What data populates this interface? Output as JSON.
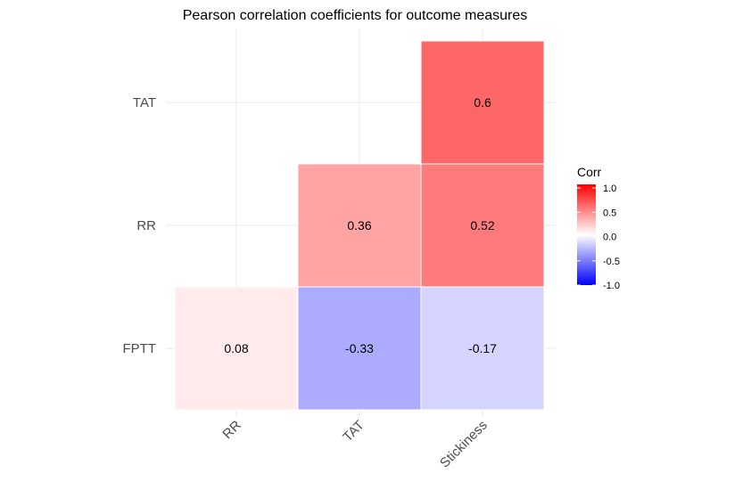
{
  "chart_data": {
    "type": "heatmap",
    "title": "Pearson correlation coefficients for outcome measures",
    "x_categories": [
      "RR",
      "TAT",
      "Stickiness"
    ],
    "y_categories": [
      "FPTT",
      "RR",
      "TAT"
    ],
    "cells": [
      {
        "x": "RR",
        "y": "FPTT",
        "value": 0.08,
        "label": "0.08"
      },
      {
        "x": "TAT",
        "y": "FPTT",
        "value": -0.33,
        "label": "-0.33"
      },
      {
        "x": "Stickiness",
        "y": "FPTT",
        "value": -0.17,
        "label": "-0.17"
      },
      {
        "x": "TAT",
        "y": "RR",
        "value": 0.36,
        "label": "0.36"
      },
      {
        "x": "Stickiness",
        "y": "RR",
        "value": 0.52,
        "label": "0.52"
      },
      {
        "x": "Stickiness",
        "y": "TAT",
        "value": 0.6,
        "label": "0.6"
      }
    ],
    "legend": {
      "title": "Corr",
      "range": [
        -1,
        1
      ],
      "ticks": [
        "1.0",
        "0.5",
        "0.0",
        "-0.5",
        "-1.0"
      ],
      "tick_values": [
        1.0,
        0.5,
        0.0,
        -0.5,
        -1.0
      ],
      "low_color": "#0000ff",
      "mid_color": "#ffffff",
      "high_color": "#ff0000",
      "placement": "right"
    },
    "grid": true
  }
}
